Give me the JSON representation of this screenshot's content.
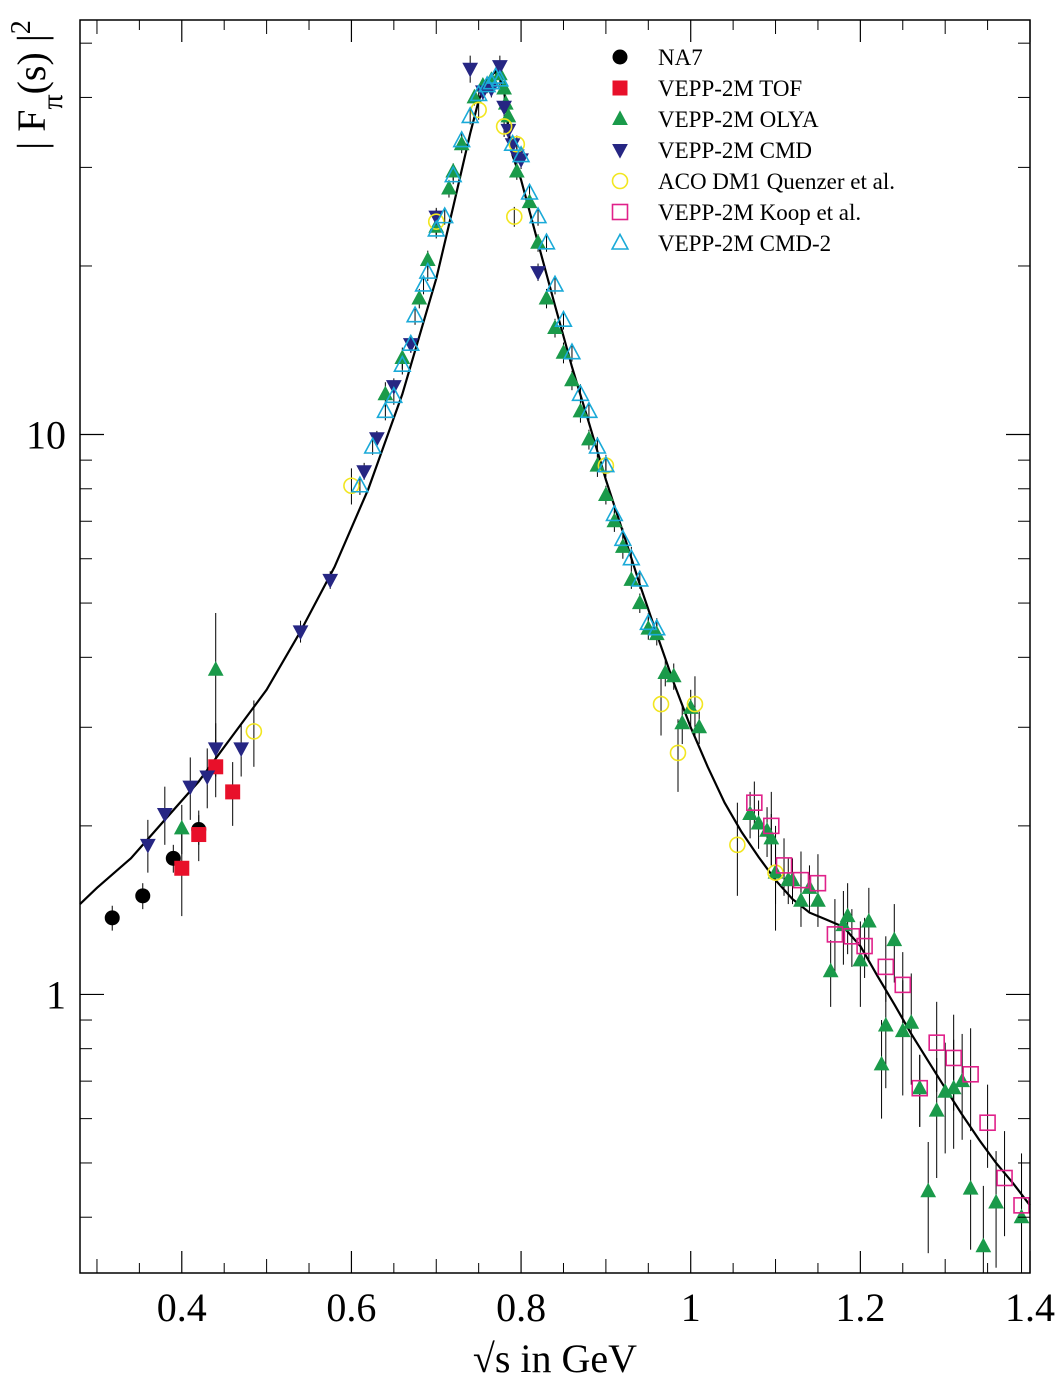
{
  "chart_data": {
    "type": "scatter",
    "title": "",
    "xlabel": "√s in GeV",
    "ylabel": "| F_π(s) |^2",
    "ylabel_parts": {
      "pre": "| F",
      "sub": "π",
      "mid": "(s) |",
      "sup": "2"
    },
    "xlim": [
      0.28,
      1.4
    ],
    "ylim": [
      0.318,
      55
    ],
    "yscale": "log",
    "x_ticks": [
      {
        "value": 0.4,
        "label": "0.4"
      },
      {
        "value": 0.6,
        "label": "0.6"
      },
      {
        "value": 0.8,
        "label": "0.8"
      },
      {
        "value": 1.0,
        "label": "1"
      },
      {
        "value": 1.2,
        "label": "1.2"
      },
      {
        "value": 1.4,
        "label": "1.4"
      }
    ],
    "y_ticks": [
      {
        "value": 1,
        "label": "1"
      },
      {
        "value": 10,
        "label": "10"
      }
    ],
    "grid": false,
    "legend_position": "top-right",
    "series": [
      {
        "name": "NA7",
        "marker": "circle-filled",
        "color": "#000000",
        "points": [
          [
            0.318,
            1.37,
            0.07
          ],
          [
            0.354,
            1.5,
            0.08
          ],
          [
            0.39,
            1.75,
            0.1
          ],
          [
            0.42,
            1.97,
            0.12
          ]
        ]
      },
      {
        "name": "VEPP-2M TOF",
        "marker": "square-filled",
        "color": "#e8102a",
        "points": [
          [
            0.4,
            1.68,
            0.3
          ],
          [
            0.42,
            1.93,
            0.2
          ],
          [
            0.44,
            2.55,
            0.3
          ],
          [
            0.46,
            2.3,
            0.3
          ]
        ]
      },
      {
        "name": "VEPP-2M OLYA",
        "marker": "triangle-up-filled",
        "color": "#1a9a4a",
        "points": [
          [
            0.4,
            1.98,
            0.2
          ],
          [
            0.44,
            3.8,
            1.0
          ],
          [
            0.64,
            11.8,
            0.6
          ],
          [
            0.66,
            13.7,
            0.6
          ],
          [
            0.68,
            17.5,
            0.7
          ],
          [
            0.69,
            20.5,
            0.8
          ],
          [
            0.7,
            23.5,
            0.9
          ],
          [
            0.715,
            27.5,
            1.0
          ],
          [
            0.72,
            29.5,
            1.0
          ],
          [
            0.73,
            33.0,
            1.2
          ],
          [
            0.745,
            40.0,
            1.3
          ],
          [
            0.755,
            42.0,
            1.3
          ],
          [
            0.765,
            43.0,
            1.3
          ],
          [
            0.775,
            44.0,
            1.3
          ],
          [
            0.78,
            41.5,
            1.3
          ],
          [
            0.782,
            39.0,
            1.3
          ],
          [
            0.785,
            37.0,
            1.2
          ],
          [
            0.795,
            29.5,
            1.0
          ],
          [
            0.81,
            26.0,
            0.9
          ],
          [
            0.82,
            22.0,
            0.8
          ],
          [
            0.83,
            17.5,
            0.7
          ],
          [
            0.84,
            15.5,
            0.6
          ],
          [
            0.85,
            14.0,
            0.6
          ],
          [
            0.86,
            12.5,
            0.5
          ],
          [
            0.87,
            11.0,
            0.5
          ],
          [
            0.88,
            9.8,
            0.4
          ],
          [
            0.89,
            8.8,
            0.4
          ],
          [
            0.9,
            7.8,
            0.3
          ],
          [
            0.91,
            7.0,
            0.3
          ],
          [
            0.92,
            6.3,
            0.3
          ],
          [
            0.93,
            5.5,
            0.2
          ],
          [
            0.94,
            5.0,
            0.2
          ],
          [
            0.95,
            4.5,
            0.2
          ],
          [
            0.96,
            4.4,
            0.2
          ],
          [
            0.97,
            3.75,
            0.2
          ],
          [
            0.98,
            3.7,
            0.2
          ],
          [
            0.99,
            3.05,
            0.25
          ],
          [
            1.0,
            3.25,
            0.25
          ],
          [
            1.01,
            3.0,
            0.2
          ],
          [
            1.07,
            2.1,
            0.2
          ],
          [
            1.08,
            2.02,
            0.2
          ],
          [
            1.09,
            1.96,
            0.2
          ],
          [
            1.095,
            1.9,
            0.2
          ],
          [
            1.1,
            1.65,
            0.2
          ],
          [
            1.115,
            1.6,
            0.15
          ],
          [
            1.12,
            1.6,
            0.15
          ],
          [
            1.13,
            1.47,
            0.15
          ],
          [
            1.14,
            1.55,
            0.15
          ],
          [
            1.15,
            1.47,
            0.15
          ],
          [
            1.165,
            1.1,
            0.15
          ],
          [
            1.18,
            1.33,
            0.2
          ],
          [
            1.185,
            1.38,
            0.2
          ],
          [
            1.2,
            1.15,
            0.2
          ],
          [
            1.21,
            1.35,
            0.2
          ],
          [
            1.225,
            0.75,
            0.15
          ],
          [
            1.23,
            0.88,
            0.2
          ],
          [
            1.24,
            1.25,
            0.2
          ],
          [
            1.25,
            0.86,
            0.2
          ],
          [
            1.26,
            0.89,
            0.2
          ],
          [
            1.27,
            0.68,
            0.1
          ],
          [
            1.28,
            0.445,
            0.1
          ],
          [
            1.29,
            0.62,
            0.15
          ],
          [
            1.3,
            0.67,
            0.15
          ],
          [
            1.31,
            0.68,
            0.15
          ],
          [
            1.32,
            0.7,
            0.15
          ],
          [
            1.33,
            0.45,
            0.1
          ],
          [
            1.345,
            0.355,
            0.1
          ],
          [
            1.36,
            0.425,
            0.1
          ],
          [
            1.39,
            0.4,
            0.1
          ]
        ]
      },
      {
        "name": "VEPP-2M CMD",
        "marker": "triangle-down-filled",
        "color": "#262683",
        "points": [
          [
            0.36,
            1.85,
            0.2
          ],
          [
            0.38,
            2.1,
            0.25
          ],
          [
            0.41,
            2.35,
            0.3
          ],
          [
            0.43,
            2.45,
            0.3
          ],
          [
            0.44,
            2.75,
            0.3
          ],
          [
            0.47,
            2.75,
            0.3
          ],
          [
            0.54,
            4.45,
            0.2
          ],
          [
            0.575,
            5.5,
            0.2
          ],
          [
            0.615,
            8.6,
            0.3
          ],
          [
            0.63,
            9.85,
            0.3
          ],
          [
            0.65,
            12.2,
            0.4
          ],
          [
            0.67,
            14.5,
            0.5
          ],
          [
            0.7,
            24.5,
            0.9
          ],
          [
            0.74,
            45.0,
            2.5
          ],
          [
            0.755,
            41.0,
            1.5
          ],
          [
            0.765,
            41.5,
            1.5
          ],
          [
            0.775,
            45.5,
            2.0
          ],
          [
            0.78,
            38.5,
            1.5
          ],
          [
            0.785,
            35.0,
            1.3
          ],
          [
            0.79,
            33.0,
            1.2
          ],
          [
            0.795,
            31.5,
            1.2
          ],
          [
            0.8,
            31.0,
            1.2
          ],
          [
            0.82,
            19.5,
            0.7
          ]
        ]
      },
      {
        "name": "ACO DM1 Quenzer et al.",
        "marker": "circle-open",
        "color": "#f2e620",
        "points": [
          [
            0.485,
            2.95,
            0.4
          ],
          [
            0.6,
            8.1,
            0.6
          ],
          [
            0.7,
            24.0,
            1.2
          ],
          [
            0.75,
            38.0,
            1.5
          ],
          [
            0.78,
            35.5,
            1.5
          ],
          [
            0.792,
            24.5,
            1.0
          ],
          [
            0.795,
            33.0,
            1.2
          ],
          [
            0.9,
            8.8,
            0.4
          ],
          [
            0.965,
            3.3,
            0.4
          ],
          [
            0.985,
            2.7,
            0.4
          ],
          [
            1.005,
            3.3,
            0.4
          ],
          [
            1.055,
            1.85,
            0.35
          ],
          [
            1.1,
            1.65,
            0.35
          ]
        ]
      },
      {
        "name": "VEPP-2M Koop et al.",
        "marker": "square-open",
        "color": "#e0218a",
        "points": [
          [
            1.075,
            2.2,
            0.2
          ],
          [
            1.095,
            2.0,
            0.3
          ],
          [
            1.11,
            1.7,
            0.2
          ],
          [
            1.13,
            1.6,
            0.2
          ],
          [
            1.15,
            1.58,
            0.2
          ],
          [
            1.17,
            1.28,
            0.2
          ],
          [
            1.19,
            1.27,
            0.15
          ],
          [
            1.205,
            1.22,
            0.15
          ],
          [
            1.23,
            1.12,
            0.15
          ],
          [
            1.25,
            1.04,
            0.15
          ],
          [
            1.27,
            0.68,
            0.1
          ],
          [
            1.29,
            0.82,
            0.15
          ],
          [
            1.31,
            0.77,
            0.15
          ],
          [
            1.33,
            0.72,
            0.15
          ],
          [
            1.35,
            0.59,
            0.1
          ],
          [
            1.37,
            0.47,
            0.1
          ],
          [
            1.39,
            0.42,
            0.1
          ]
        ]
      },
      {
        "name": "VEPP-2M CMD-2",
        "marker": "triangle-up-open",
        "color": "#1aaad8",
        "points": [
          [
            0.61,
            8.1,
            0.3
          ],
          [
            0.625,
            9.5,
            0.3
          ],
          [
            0.64,
            11.0,
            0.4
          ],
          [
            0.65,
            11.7,
            0.4
          ],
          [
            0.66,
            13.3,
            0.5
          ],
          [
            0.67,
            14.5,
            0.5
          ],
          [
            0.675,
            16.3,
            0.6
          ],
          [
            0.685,
            18.5,
            0.7
          ],
          [
            0.69,
            19.5,
            0.7
          ],
          [
            0.7,
            23.2,
            0.8
          ],
          [
            0.71,
            24.5,
            0.8
          ],
          [
            0.72,
            29.0,
            1.0
          ],
          [
            0.73,
            33.5,
            1.1
          ],
          [
            0.74,
            37.0,
            1.2
          ],
          [
            0.75,
            40.5,
            1.3
          ],
          [
            0.76,
            42.0,
            1.3
          ],
          [
            0.765,
            42.5,
            1.3
          ],
          [
            0.77,
            43.5,
            1.3
          ],
          [
            0.775,
            43.0,
            1.3
          ],
          [
            0.79,
            33.0,
            1.1
          ],
          [
            0.8,
            31.5,
            1.1
          ],
          [
            0.81,
            27.0,
            1.0
          ],
          [
            0.82,
            24.5,
            0.9
          ],
          [
            0.83,
            22.0,
            0.8
          ],
          [
            0.84,
            18.5,
            0.7
          ],
          [
            0.85,
            16.0,
            0.6
          ],
          [
            0.86,
            14.0,
            0.5
          ],
          [
            0.87,
            11.8,
            0.5
          ],
          [
            0.88,
            11.0,
            0.4
          ],
          [
            0.89,
            9.5,
            0.4
          ],
          [
            0.9,
            8.8,
            0.3
          ],
          [
            0.91,
            7.2,
            0.3
          ],
          [
            0.92,
            6.5,
            0.3
          ],
          [
            0.93,
            6.0,
            0.3
          ],
          [
            0.94,
            5.5,
            0.2
          ],
          [
            0.95,
            4.6,
            0.2
          ],
          [
            0.96,
            4.5,
            0.2
          ]
        ]
      }
    ],
    "fit_curve": {
      "name": "",
      "points": [
        [
          0.28,
          1.45
        ],
        [
          0.3,
          1.55
        ],
        [
          0.34,
          1.75
        ],
        [
          0.38,
          2.05
        ],
        [
          0.42,
          2.4
        ],
        [
          0.46,
          2.9
        ],
        [
          0.5,
          3.5
        ],
        [
          0.54,
          4.45
        ],
        [
          0.58,
          5.8
        ],
        [
          0.62,
          8.0
        ],
        [
          0.66,
          11.8
        ],
        [
          0.7,
          19.0
        ],
        [
          0.72,
          25.5
        ],
        [
          0.74,
          34.5
        ],
        [
          0.75,
          39.5
        ],
        [
          0.76,
          43.0
        ],
        [
          0.77,
          44.5
        ],
        [
          0.775,
          43.5
        ],
        [
          0.78,
          41.0
        ],
        [
          0.782,
          39.0
        ],
        [
          0.785,
          35.0
        ],
        [
          0.79,
          31.5
        ],
        [
          0.8,
          28.5
        ],
        [
          0.82,
          22.0
        ],
        [
          0.84,
          17.0
        ],
        [
          0.86,
          13.2
        ],
        [
          0.88,
          10.5
        ],
        [
          0.9,
          8.3
        ],
        [
          0.92,
          6.7
        ],
        [
          0.94,
          5.4
        ],
        [
          0.96,
          4.4
        ],
        [
          0.98,
          3.6
        ],
        [
          1.0,
          3.0
        ],
        [
          1.02,
          2.55
        ],
        [
          1.04,
          2.2
        ],
        [
          1.06,
          1.95
        ],
        [
          1.08,
          1.76
        ],
        [
          1.1,
          1.6
        ],
        [
          1.12,
          1.48
        ],
        [
          1.14,
          1.4
        ],
        [
          1.16,
          1.36
        ],
        [
          1.18,
          1.32
        ],
        [
          1.2,
          1.22
        ],
        [
          1.22,
          1.08
        ],
        [
          1.24,
          0.96
        ],
        [
          1.26,
          0.85
        ],
        [
          1.28,
          0.76
        ],
        [
          1.3,
          0.68
        ],
        [
          1.32,
          0.61
        ],
        [
          1.34,
          0.55
        ],
        [
          1.36,
          0.5
        ],
        [
          1.38,
          0.46
        ],
        [
          1.4,
          0.42
        ]
      ]
    }
  }
}
